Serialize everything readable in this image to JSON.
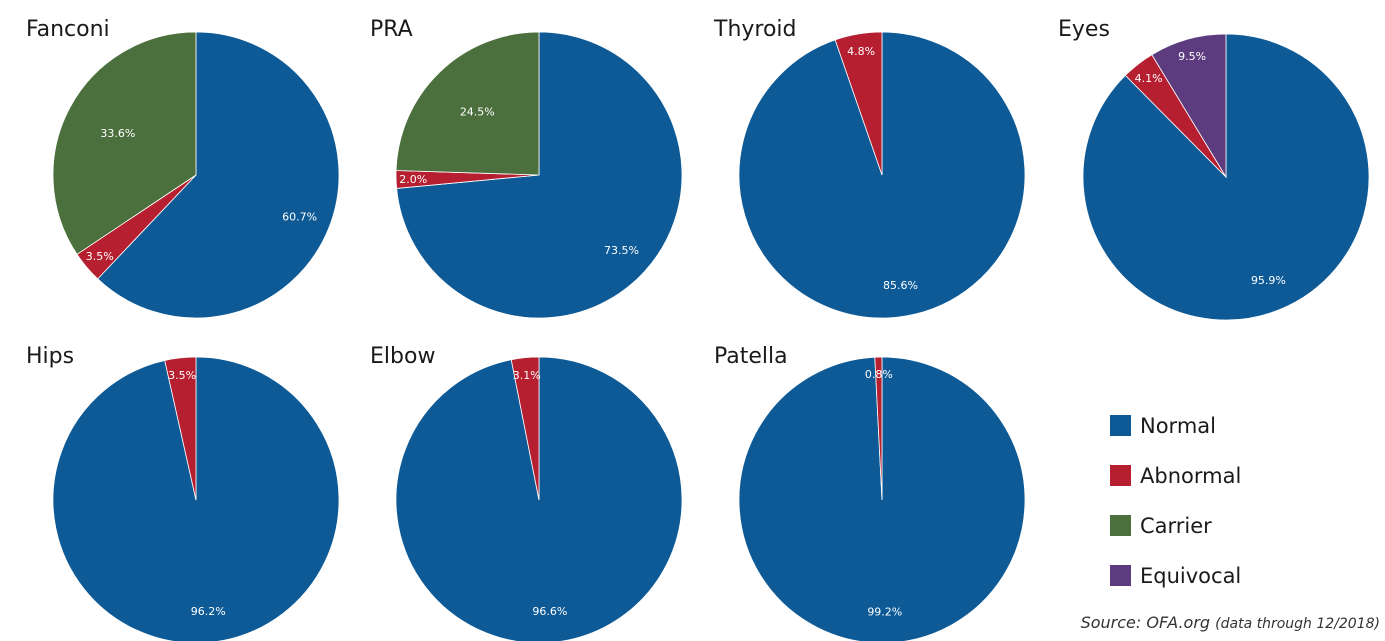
{
  "colors": {
    "Normal": "#0e5a96",
    "Abnormal": "#b51f30",
    "Carrier": "#4c703d",
    "Equivocal": "#5c3c7e"
  },
  "legend": {
    "items": [
      "Normal",
      "Abnormal",
      "Carrier",
      "Equivocal"
    ]
  },
  "source": {
    "main": "Source: OFA.org",
    "detail": "(data through 12/2018)"
  },
  "chart_data": [
    {
      "type": "pie",
      "title": "Fanconi",
      "slices": [
        {
          "category": "Normal",
          "value": 60.7,
          "label": "60.7%"
        },
        {
          "category": "Abnormal",
          "value": 3.5,
          "label": "3.5%"
        },
        {
          "category": "Carrier",
          "value": 33.6,
          "label": "33.6%"
        }
      ]
    },
    {
      "type": "pie",
      "title": "PRA",
      "slices": [
        {
          "category": "Normal",
          "value": 73.5,
          "label": "73.5%"
        },
        {
          "category": "Abnormal",
          "value": 2.0,
          "label": "2.0%"
        },
        {
          "category": "Carrier",
          "value": 24.5,
          "label": "24.5%"
        }
      ]
    },
    {
      "type": "pie",
      "title": "Thyroid",
      "slices": [
        {
          "category": "Normal",
          "value": 85.6,
          "label": "85.6%"
        },
        {
          "category": "Abnormal",
          "value": 4.8,
          "label": "4.8%"
        }
      ]
    },
    {
      "type": "pie",
      "title": "Eyes",
      "slices": [
        {
          "category": "Normal",
          "value": 95.9,
          "label": "95.9%"
        },
        {
          "category": "Abnormal",
          "value": 4.1,
          "label": "4.1%"
        },
        {
          "category": "Equivocal",
          "value": 9.5,
          "label": "9.5%"
        }
      ]
    },
    {
      "type": "pie",
      "title": "Hips",
      "slices": [
        {
          "category": "Normal",
          "value": 96.2,
          "label": "96.2%"
        },
        {
          "category": "Abnormal",
          "value": 3.5,
          "label": "3.5%"
        }
      ]
    },
    {
      "type": "pie",
      "title": "Elbow",
      "slices": [
        {
          "category": "Normal",
          "value": 96.6,
          "label": "96.6%"
        },
        {
          "category": "Abnormal",
          "value": 3.1,
          "label": "3.1%"
        }
      ]
    },
    {
      "type": "pie",
      "title": "Patella",
      "slices": [
        {
          "category": "Normal",
          "value": 99.2,
          "label": "99.2%"
        },
        {
          "category": "Abnormal",
          "value": 0.8,
          "label": "0.8%"
        }
      ]
    }
  ]
}
